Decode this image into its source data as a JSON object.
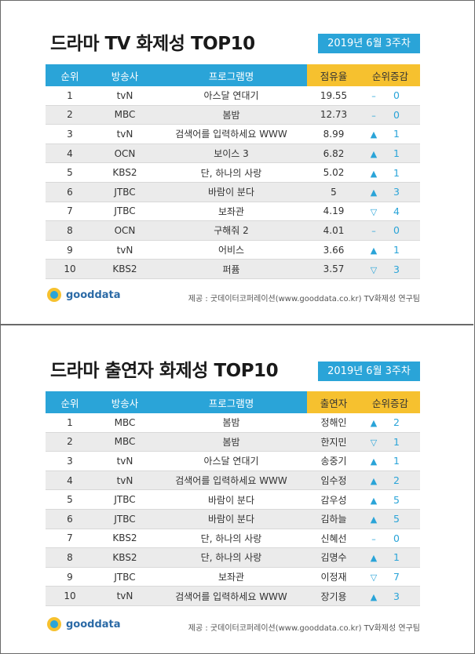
{
  "chart1": {
    "title": "드라마 TV 화제성 TOP10",
    "week": "2019년  6월 3주차",
    "headers": [
      "순위",
      "방송사",
      "프로그램명",
      "점유율",
      "순위증감"
    ],
    "rows": [
      {
        "rank": "1",
        "channel": "tvN",
        "program": "아스달 연대기",
        "value": "19.55",
        "icon": "–",
        "delta": "0"
      },
      {
        "rank": "2",
        "channel": "MBC",
        "program": "봄밤",
        "value": "12.73",
        "icon": "–",
        "delta": "0"
      },
      {
        "rank": "3",
        "channel": "tvN",
        "program": "검색어를 입력하세요 WWW",
        "value": "8.99",
        "icon": "▲",
        "delta": "1"
      },
      {
        "rank": "4",
        "channel": "OCN",
        "program": "보이스 3",
        "value": "6.82",
        "icon": "▲",
        "delta": "1"
      },
      {
        "rank": "5",
        "channel": "KBS2",
        "program": "단, 하나의 사랑",
        "value": "5.02",
        "icon": "▲",
        "delta": "1"
      },
      {
        "rank": "6",
        "channel": "JTBC",
        "program": "바람이 분다",
        "value": "5",
        "icon": "▲",
        "delta": "3"
      },
      {
        "rank": "7",
        "channel": "JTBC",
        "program": "보좌관",
        "value": "4.19",
        "icon": "▽",
        "delta": "4"
      },
      {
        "rank": "8",
        "channel": "OCN",
        "program": "구해줘 2",
        "value": "4.01",
        "icon": "–",
        "delta": "0"
      },
      {
        "rank": "9",
        "channel": "tvN",
        "program": "어비스",
        "value": "3.66",
        "icon": "▲",
        "delta": "1"
      },
      {
        "rank": "10",
        "channel": "KBS2",
        "program": "퍼퓸",
        "value": "3.57",
        "icon": "▽",
        "delta": "3"
      }
    ],
    "logo": "gooddata",
    "source": "제공 : 굿데이터코퍼레이션(www.gooddata.co.kr) TV화제성 연구팀"
  },
  "chart2": {
    "title": "드라마 출연자 화제성 TOP10",
    "week": "2019년  6월 3주차",
    "headers": [
      "순위",
      "방송사",
      "프로그램명",
      "출연자",
      "순위증감"
    ],
    "rows": [
      {
        "rank": "1",
        "channel": "MBC",
        "program": "봄밤",
        "value": "정해인",
        "icon": "▲",
        "delta": "2"
      },
      {
        "rank": "2",
        "channel": "MBC",
        "program": "봄밤",
        "value": "한지민",
        "icon": "▽",
        "delta": "1"
      },
      {
        "rank": "3",
        "channel": "tvN",
        "program": "아스달 연대기",
        "value": "송중기",
        "icon": "▲",
        "delta": "1"
      },
      {
        "rank": "4",
        "channel": "tvN",
        "program": "검색어를 입력하세요 WWW",
        "value": "임수정",
        "icon": "▲",
        "delta": "2"
      },
      {
        "rank": "5",
        "channel": "JTBC",
        "program": "바람이 분다",
        "value": "감우성",
        "icon": "▲",
        "delta": "5"
      },
      {
        "rank": "6",
        "channel": "JTBC",
        "program": "바람이 분다",
        "value": "김하늘",
        "icon": "▲",
        "delta": "5"
      },
      {
        "rank": "7",
        "channel": "KBS2",
        "program": "단, 하나의 사랑",
        "value": "신혜선",
        "icon": "–",
        "delta": "0"
      },
      {
        "rank": "8",
        "channel": "KBS2",
        "program": "단, 하나의 사랑",
        "value": "김명수",
        "icon": "▲",
        "delta": "1"
      },
      {
        "rank": "9",
        "channel": "JTBC",
        "program": "보좌관",
        "value": "이정재",
        "icon": "▽",
        "delta": "7"
      },
      {
        "rank": "10",
        "channel": "tvN",
        "program": "검색어를 입력하세요 WWW",
        "value": "장기용",
        "icon": "▲",
        "delta": "3"
      }
    ],
    "logo": "gooddata",
    "source": "제공 : 굿데이터코퍼레이션(www.gooddata.co.kr) TV화제성 연구팀"
  }
}
